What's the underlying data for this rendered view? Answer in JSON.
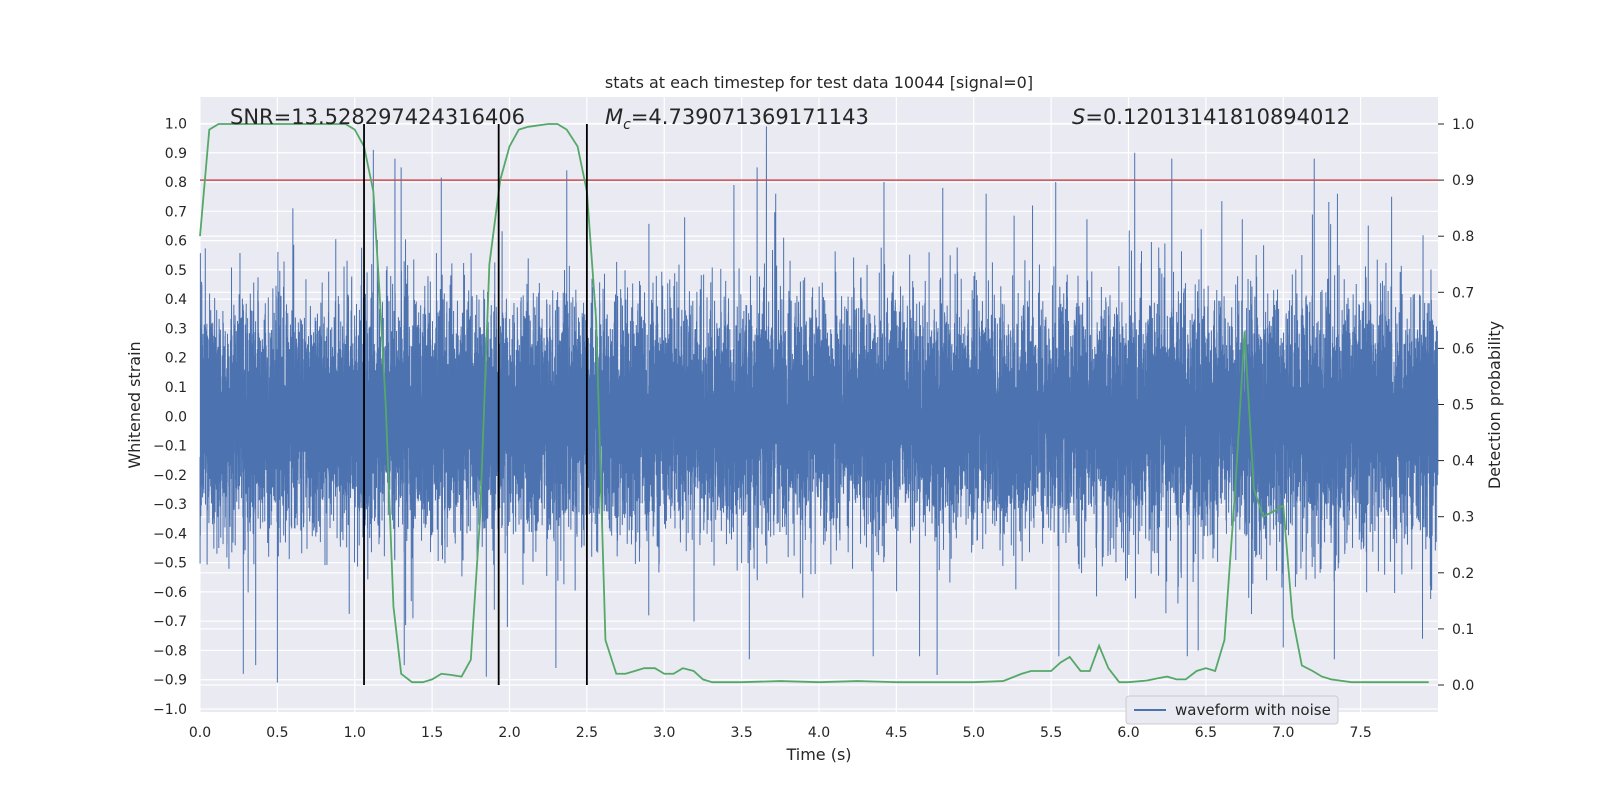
{
  "chart_data": {
    "type": "line",
    "title": "stats at each timestep for test data 10044 [signal=0]",
    "xlabel": "Time (s)",
    "ylabel": "Whitened strain",
    "y2label": "Detection probability",
    "xlim": [
      0,
      8
    ],
    "ylim": [
      -1.0,
      1.0
    ],
    "y2lim": [
      -0.045,
      1.04
    ],
    "x_ticks": [
      "0.0",
      "0.5",
      "1.0",
      "1.5",
      "2.0",
      "2.5",
      "3.0",
      "3.5",
      "4.0",
      "4.5",
      "5.0",
      "5.5",
      "6.0",
      "6.5",
      "7.0",
      "7.5"
    ],
    "y_ticks": [
      "1.0",
      "0.9",
      "0.8",
      "0.7",
      "0.6",
      "0.5",
      "0.4",
      "0.3",
      "0.2",
      "0.1",
      "0.0",
      "−0.1",
      "−0.2",
      "−0.3",
      "−0.4",
      "−0.5",
      "−0.6",
      "−0.7",
      "−0.8",
      "−0.9",
      "−1.0"
    ],
    "y2_ticks": [
      "1.0",
      "0.9",
      "0.8",
      "0.7",
      "0.6",
      "0.5",
      "0.4",
      "0.3",
      "0.2",
      "0.1",
      "0.0"
    ],
    "grid": true,
    "legend": {
      "position": "lower-right",
      "entries": [
        "waveform with noise"
      ]
    },
    "annotations": {
      "snr": "SNR=13.528297424316406",
      "mc": "=4.739071369171143",
      "mc_symbol": "M",
      "mc_sub": "c",
      "s": "=0.12013141810894012",
      "s_symbol": "S"
    },
    "threshold": {
      "value": 0.9,
      "axis": "y2",
      "color": "#c44e52"
    },
    "vertical_markers": [
      1.06,
      1.93,
      2.5
    ],
    "colors": {
      "waveform": "#4c72b0",
      "probability": "#55a868",
      "threshold": "#c44e52",
      "marker": "#000000",
      "plot_bg": "#eaeaf2"
    },
    "waveform": {
      "name": "waveform with noise",
      "t_range": [
        0,
        8
      ],
      "sample_rate": 2048,
      "envelope_typical": 0.45,
      "peaks_upper": [
        [
          0.36,
          0.72
        ],
        [
          0.6,
          0.71
        ],
        [
          1.12,
          0.91
        ],
        [
          1.26,
          0.88
        ],
        [
          1.3,
          0.85
        ],
        [
          2.3,
          0.77
        ],
        [
          2.37,
          0.84
        ],
        [
          3.45,
          0.79
        ],
        [
          3.6,
          0.85
        ],
        [
          3.66,
          0.99
        ],
        [
          3.72,
          0.76
        ],
        [
          4.42,
          0.8
        ],
        [
          4.8,
          0.78
        ],
        [
          5.08,
          0.76
        ],
        [
          5.38,
          0.72
        ],
        [
          5.53,
          0.8
        ],
        [
          6.04,
          0.9
        ],
        [
          6.28,
          0.88
        ],
        [
          7.2,
          0.88
        ],
        [
          7.35,
          0.76
        ],
        [
          7.7,
          0.75
        ]
      ],
      "peaks_lower": [
        [
          0.28,
          -0.88
        ],
        [
          0.36,
          -0.85
        ],
        [
          0.5,
          -0.91
        ],
        [
          1.32,
          -0.85
        ],
        [
          1.85,
          -0.89
        ],
        [
          2.3,
          -0.86
        ],
        [
          2.9,
          -0.68
        ],
        [
          3.55,
          -0.83
        ],
        [
          4.35,
          -0.82
        ],
        [
          4.65,
          -0.82
        ],
        [
          5.55,
          -0.82
        ],
        [
          6.38,
          -0.82
        ],
        [
          6.45,
          -0.8
        ],
        [
          7.0,
          -0.79
        ],
        [
          7.33,
          -0.83
        ],
        [
          7.9,
          -0.76
        ]
      ]
    },
    "series": [
      {
        "name": "detection probability",
        "axis": "y2",
        "x": [
          0.0,
          0.06,
          0.12,
          0.25,
          0.5,
          0.75,
          0.94,
          1.0,
          1.06,
          1.12,
          1.16,
          1.2,
          1.25,
          1.3,
          1.37,
          1.44,
          1.5,
          1.56,
          1.62,
          1.69,
          1.75,
          1.81,
          1.87,
          1.94,
          2.0,
          2.06,
          2.12,
          2.25,
          2.31,
          2.37,
          2.44,
          2.5,
          2.56,
          2.62,
          2.69,
          2.75,
          2.81,
          2.87,
          2.94,
          3.0,
          3.06,
          3.12,
          3.19,
          3.25,
          3.31,
          3.5,
          3.75,
          4.0,
          4.25,
          4.5,
          4.75,
          5.0,
          5.19,
          5.31,
          5.37,
          5.5,
          5.56,
          5.62,
          5.69,
          5.75,
          5.81,
          5.87,
          5.94,
          6.0,
          6.12,
          6.19,
          6.25,
          6.31,
          6.37,
          6.44,
          6.5,
          6.56,
          6.62,
          6.69,
          6.75,
          6.81,
          6.87,
          6.94,
          7.0,
          7.06,
          7.12,
          7.19,
          7.25,
          7.31,
          7.44,
          7.62,
          7.75,
          7.94
        ],
        "y": [
          0.8,
          0.99,
          1.0,
          1.0,
          1.0,
          1.0,
          1.0,
          0.99,
          0.96,
          0.88,
          0.7,
          0.5,
          0.14,
          0.02,
          0.005,
          0.005,
          0.01,
          0.02,
          0.018,
          0.015,
          0.045,
          0.3,
          0.75,
          0.9,
          0.96,
          0.99,
          0.995,
          1.0,
          1.0,
          0.99,
          0.96,
          0.88,
          0.65,
          0.08,
          0.02,
          0.02,
          0.025,
          0.03,
          0.03,
          0.02,
          0.02,
          0.03,
          0.025,
          0.01,
          0.005,
          0.005,
          0.007,
          0.005,
          0.007,
          0.005,
          0.005,
          0.005,
          0.007,
          0.02,
          0.025,
          0.025,
          0.04,
          0.05,
          0.025,
          0.025,
          0.07,
          0.03,
          0.005,
          0.005,
          0.008,
          0.012,
          0.015,
          0.01,
          0.01,
          0.025,
          0.03,
          0.025,
          0.08,
          0.35,
          0.63,
          0.35,
          0.3,
          0.31,
          0.32,
          0.12,
          0.035,
          0.025,
          0.015,
          0.01,
          0.005,
          0.005,
          0.005,
          0.005
        ]
      }
    ]
  }
}
